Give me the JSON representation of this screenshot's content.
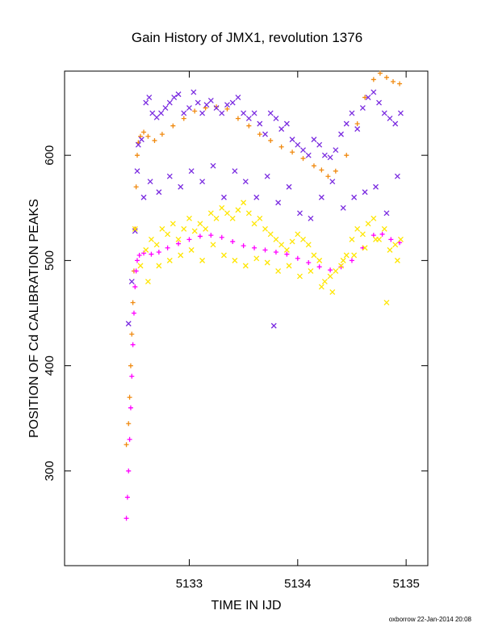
{
  "chart_data": {
    "type": "scatter",
    "title": "Gain History of JMX1, revolution 1376",
    "xlabel": "TIME IN IJD",
    "ylabel": "POSITION OF Cd CALIBRATION PEAKS",
    "xlim": [
      5131.85,
      5135.2
    ],
    "ylim": [
      210,
      680
    ],
    "xticks": [
      "5133",
      "5134",
      "5135"
    ],
    "xtick_values": [
      5133,
      5134,
      5135
    ],
    "yticks": [
      "300",
      "400",
      "500",
      "600"
    ],
    "ytick_values": [
      300,
      400,
      500,
      600
    ],
    "grid": false,
    "footer": "oxborrow 22-Jan-2014 20:08",
    "series": [
      {
        "marker": "plus",
        "color": "#f08a10",
        "x": [
          5132.42,
          5132.44,
          5132.45,
          5132.46,
          5132.47,
          5132.48,
          5132.49,
          5132.5,
          5132.51,
          5132.52,
          5132.53,
          5132.55,
          5132.58,
          5132.62,
          5132.68,
          5132.75,
          5132.85,
          5132.95,
          5133.05,
          5133.15,
          5133.25,
          5133.35,
          5133.45,
          5133.55,
          5133.65,
          5133.75,
          5133.85,
          5133.95,
          5134.05,
          5134.15,
          5134.22,
          5134.28,
          5134.35,
          5134.45,
          5134.55,
          5134.62,
          5134.7,
          5134.76,
          5134.82,
          5134.88,
          5134.94
        ],
        "y": [
          325,
          345,
          370,
          400,
          430,
          460,
          490,
          530,
          570,
          600,
          612,
          618,
          622,
          618,
          614,
          620,
          628,
          635,
          642,
          645,
          646,
          644,
          635,
          628,
          620,
          614,
          608,
          603,
          597,
          590,
          586,
          580,
          585,
          600,
          630,
          655,
          672,
          678,
          674,
          670,
          668
        ]
      },
      {
        "marker": "plus",
        "color": "#ff00ff",
        "x": [
          5132.42,
          5132.43,
          5132.44,
          5132.45,
          5132.46,
          5132.47,
          5132.48,
          5132.49,
          5132.5,
          5132.51,
          5132.52,
          5132.54,
          5132.58,
          5132.65,
          5132.72,
          5132.8,
          5132.9,
          5133.0,
          5133.1,
          5133.2,
          5133.3,
          5133.4,
          5133.5,
          5133.6,
          5133.7,
          5133.8,
          5133.9,
          5134.0,
          5134.1,
          5134.2,
          5134.3,
          5134.4,
          5134.5,
          5134.6,
          5134.7,
          5134.78,
          5134.86,
          5134.94
        ],
        "y": [
          255,
          275,
          300,
          330,
          360,
          390,
          420,
          450,
          475,
          490,
          500,
          505,
          507,
          506,
          508,
          512,
          516,
          520,
          523,
          524,
          522,
          518,
          514,
          512,
          510,
          508,
          506,
          502,
          498,
          494,
          491,
          494,
          500,
          512,
          524,
          525,
          520,
          517
        ]
      },
      {
        "marker": "x",
        "color": "#7a2be0",
        "x": [
          5132.44,
          5132.47,
          5132.5,
          5132.53,
          5132.56,
          5132.6,
          5132.63,
          5132.66,
          5132.7,
          5132.74,
          5132.78,
          5132.82,
          5132.86,
          5132.9,
          5132.95,
          5133.0,
          5133.04,
          5133.08,
          5133.12,
          5133.16,
          5133.2,
          5133.25,
          5133.3,
          5133.35,
          5133.4,
          5133.45,
          5133.5,
          5133.55,
          5133.6,
          5133.65,
          5133.7,
          5133.75,
          5133.8,
          5133.85,
          5133.9,
          5133.95,
          5134.0,
          5134.05,
          5134.1,
          5134.15,
          5134.2,
          5134.25,
          5134.3,
          5134.35,
          5134.4,
          5134.45,
          5134.5,
          5134.55,
          5134.6,
          5134.65,
          5134.7,
          5134.75,
          5134.8,
          5134.85,
          5134.9,
          5134.95,
          5132.52,
          5132.58,
          5132.64,
          5132.72,
          5132.82,
          5132.92,
          5133.02,
          5133.12,
          5133.22,
          5133.32,
          5133.42,
          5133.52,
          5133.62,
          5133.72,
          5133.82,
          5133.92,
          5134.02,
          5134.12,
          5134.22,
          5134.32,
          5134.42,
          5134.52,
          5134.62,
          5134.72,
          5134.82,
          5134.92,
          5133.78
        ],
        "y": [
          440,
          480,
          528,
          610,
          615,
          650,
          655,
          640,
          636,
          640,
          645,
          650,
          655,
          658,
          640,
          645,
          660,
          650,
          640,
          648,
          652,
          645,
          640,
          648,
          650,
          655,
          640,
          635,
          640,
          630,
          620,
          640,
          635,
          625,
          630,
          615,
          610,
          605,
          600,
          615,
          610,
          600,
          598,
          605,
          620,
          630,
          640,
          625,
          645,
          655,
          660,
          650,
          640,
          635,
          630,
          640,
          585,
          560,
          575,
          565,
          580,
          570,
          585,
          575,
          590,
          560,
          585,
          575,
          560,
          580,
          555,
          570,
          545,
          540,
          560,
          575,
          550,
          560,
          565,
          570,
          545,
          580,
          438
        ]
      },
      {
        "marker": "x",
        "color": "#ffe600",
        "x": [
          5132.5,
          5132.55,
          5132.6,
          5132.65,
          5132.7,
          5132.75,
          5132.8,
          5132.85,
          5132.9,
          5132.95,
          5133.0,
          5133.05,
          5133.1,
          5133.15,
          5133.2,
          5133.25,
          5133.3,
          5133.35,
          5133.4,
          5133.45,
          5133.5,
          5133.55,
          5133.6,
          5133.65,
          5133.7,
          5133.75,
          5133.8,
          5133.85,
          5133.9,
          5133.95,
          5134.0,
          5134.05,
          5134.1,
          5134.15,
          5134.2,
          5134.25,
          5134.3,
          5134.35,
          5134.4,
          5134.45,
          5134.5,
          5134.55,
          5134.6,
          5134.65,
          5134.7,
          5134.75,
          5134.8,
          5134.85,
          5134.9,
          5134.95,
          5132.62,
          5132.72,
          5132.82,
          5132.92,
          5133.02,
          5133.12,
          5133.22,
          5133.32,
          5133.42,
          5133.52,
          5133.62,
          5133.72,
          5133.82,
          5133.92,
          5134.02,
          5134.12,
          5134.22,
          5134.32,
          5134.42,
          5134.52,
          5134.62,
          5134.72,
          5134.82,
          5134.92
        ],
        "y": [
          530,
          495,
          510,
          520,
          515,
          530,
          525,
          535,
          520,
          530,
          540,
          528,
          535,
          530,
          545,
          540,
          550,
          545,
          540,
          548,
          555,
          545,
          535,
          540,
          530,
          525,
          520,
          515,
          510,
          518,
          525,
          520,
          515,
          505,
          500,
          480,
          485,
          490,
          495,
          505,
          520,
          530,
          525,
          535,
          540,
          520,
          530,
          510,
          515,
          520,
          480,
          495,
          500,
          505,
          510,
          500,
          515,
          505,
          500,
          495,
          502,
          498,
          490,
          495,
          485,
          490,
          475,
          470,
          500,
          505,
          512,
          520,
          460,
          500
        ]
      }
    ]
  }
}
